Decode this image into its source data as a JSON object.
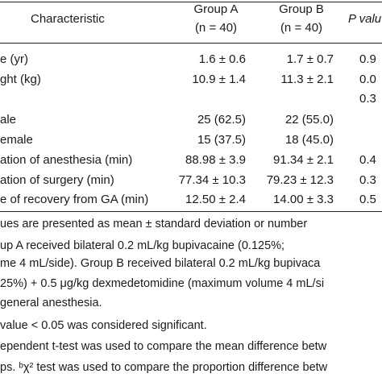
{
  "header": {
    "characteristic": "Characteristic",
    "group_a_line1": "Group A",
    "group_a_line2": "(n = 40)",
    "group_b_line1": "Group B",
    "group_b_line2": "(n = 40)",
    "p_value": "P valu"
  },
  "rows": [
    {
      "label": "e (yr)",
      "a": "1.6 ± 0.6",
      "b": "1.7 ± 0.7",
      "p": "0.9"
    },
    {
      "label": "ght (kg)",
      "a": "10.9 ± 1.4",
      "b": "11.3 ± 2.1",
      "p": "0.0"
    },
    {
      "label": "",
      "a": "",
      "b": "",
      "p": "0.3"
    },
    {
      "label": "ale",
      "a": "25 (62.5)",
      "b": "22 (55.0)",
      "p": ""
    },
    {
      "label": "emale",
      "a": "15 (37.5)",
      "b": "18 (45.0)",
      "p": ""
    },
    {
      "label": "ation of anesthesia (min)",
      "a": "88.98 ± 3.9",
      "b": "91.34 ± 2.1",
      "p": "0.4"
    },
    {
      "label": "ation of surgery (min)",
      "a": "77.34 ± 10.3",
      "b": "79.23 ± 12.3",
      "p": "0.3"
    },
    {
      "label": "e of recovery from GA (min)",
      "a": "12.50 ± 2.4",
      "b": "14.00 ± 3.3",
      "p": "0.5"
    }
  ],
  "notes": [
    "ues are presented as mean ± standard deviation or number",
    "up A received bilateral 0.2 mL/kg bupivacaine (0.125%;",
    "me 4 mL/side). Group B received bilateral 0.2 mL/kg bupivaca",
    "25%) + 0.5 μg/kg dexmedetomidine (maximum volume 4 mL/si",
    "general anesthesia.",
    "value < 0.05 was considered significant.",
    "ependent t-test was used to compare the mean difference betw",
    "ps. ᵇχ² test was used to compare the proportion difference betw"
  ]
}
